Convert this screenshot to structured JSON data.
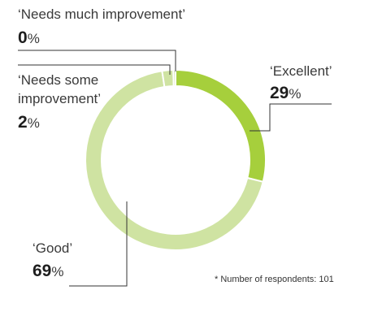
{
  "chart_data": {
    "type": "pie",
    "variant": "donut",
    "categories": [
      "'Excellent'",
      "'Good'",
      "'Needs some improvement'",
      "'Needs much improvement'"
    ],
    "values": [
      29,
      69,
      2,
      0
    ],
    "unit": "%",
    "labels": [
      {
        "lines": [
          "‘Excellent’"
        ],
        "number": "29",
        "unit": "%"
      },
      {
        "lines": [
          "‘Good’"
        ],
        "number": "69",
        "unit": "%"
      },
      {
        "lines": [
          "‘Needs some",
          "improvement’"
        ],
        "number": "2",
        "unit": "%"
      },
      {
        "lines": [
          "‘Needs much improvement’"
        ],
        "number": "0",
        "unit": "%"
      }
    ],
    "colors": {
      "excellent": "#a6cf3c",
      "good": "#cfe3a2",
      "needs_some_improvement": "#cfe3a2",
      "needs_much_improvement": "#cfe3a2",
      "separator": "#ffffff"
    },
    "footnote": "* Number of respondents: 101"
  }
}
